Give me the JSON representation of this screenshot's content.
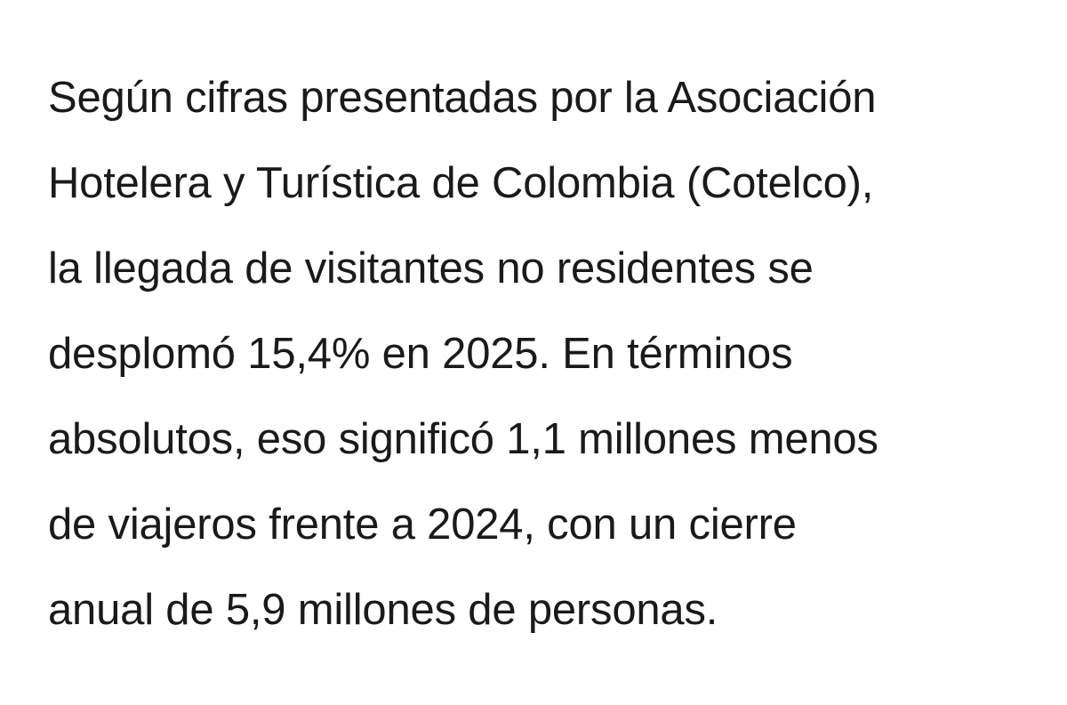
{
  "article": {
    "lines": [
      "Según cifras presentadas por la Asociación",
      "Hotelera y Turística de Colombia (Cotelco),",
      "la llegada de visitantes no residentes se",
      "desplomó 15,4% en 2025. En términos",
      "absolutos, eso significó 1,1 millones menos",
      "de viajeros frente a 2024, con un cierre",
      "anual de 5,9 millones de personas."
    ]
  }
}
